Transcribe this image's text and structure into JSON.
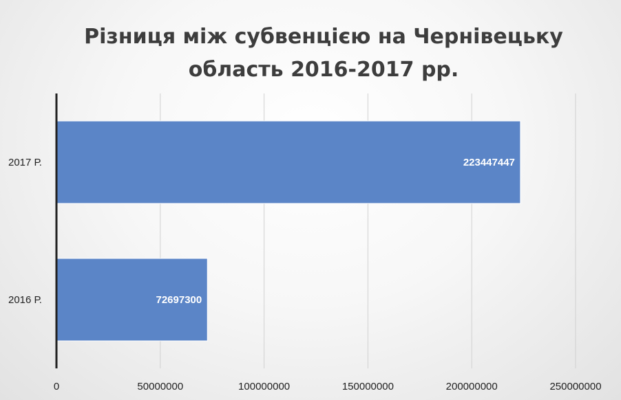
{
  "chart_data": {
    "type": "bar",
    "orientation": "horizontal",
    "title_lines": [
      "Різниця між субвенцією на Чернівецьку",
      "область  2016-2017 рр."
    ],
    "categories": [
      "2016 Р.",
      "2017 Р."
    ],
    "values": [
      72697300,
      223447447
    ],
    "data_labels": [
      "72697300",
      "223447447"
    ],
    "xlim": [
      0,
      250000000
    ],
    "x_ticks": [
      0,
      50000000,
      100000000,
      150000000,
      200000000,
      250000000
    ],
    "x_tick_labels": [
      "0",
      "50000000",
      "100000000",
      "150000000",
      "200000000",
      "250000000"
    ],
    "xlabel": "",
    "ylabel": "",
    "grid": true,
    "legend": "none",
    "bar_color": "#5b85c7",
    "bar_edge_color": "#ffffff",
    "axis_color": "#222222",
    "grid_color": "#d0d0d0"
  }
}
